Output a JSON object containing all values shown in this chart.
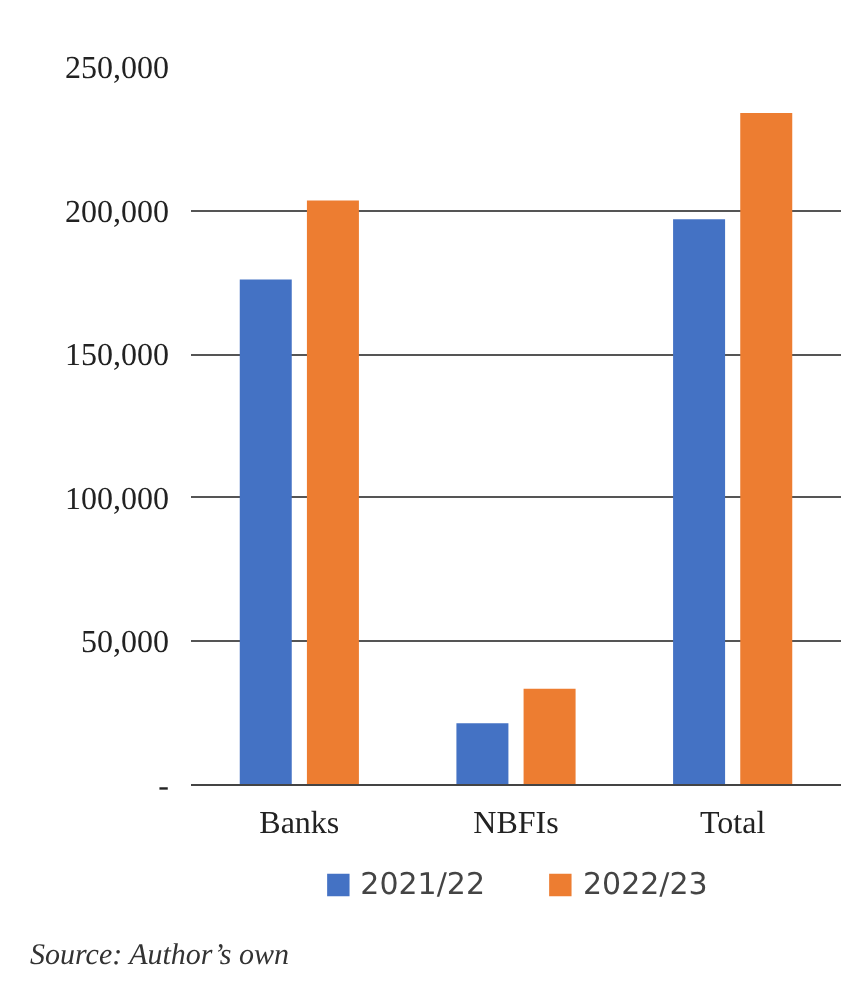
{
  "chart_data": {
    "type": "bar",
    "categories": [
      "Banks",
      "NBFIs",
      "Total"
    ],
    "series": [
      {
        "name": "2021/22",
        "color": "#4472c4",
        "values": [
          176000,
          21500,
          197000
        ]
      },
      {
        "name": "2022/23",
        "color": "#ed7d31",
        "values": [
          203500,
          33500,
          234000
        ]
      }
    ],
    "ylim": [
      0,
      250000
    ],
    "yticks": [
      {
        "value": 0,
        "label": "-"
      },
      {
        "value": 50000,
        "label": "50,000"
      },
      {
        "value": 100000,
        "label": "100,000"
      },
      {
        "value": 150000,
        "label": "150,000"
      },
      {
        "value": 200000,
        "label": "200,000"
      },
      {
        "value": 250000,
        "label": "250,000"
      }
    ],
    "grid": "y",
    "legend": "bottom",
    "annotations": [
      "Source: Author’s own"
    ]
  }
}
